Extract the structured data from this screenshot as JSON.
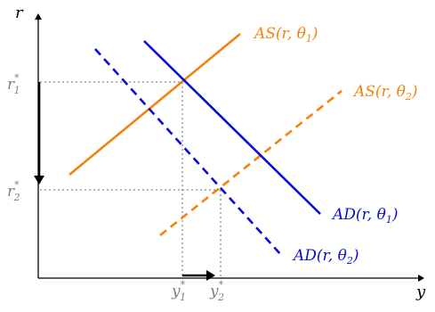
{
  "axes": {
    "y_label": "r",
    "x_label": "y"
  },
  "curves": {
    "as1": {
      "label": "AS(r, θ",
      "sub": "1",
      "close": ")"
    },
    "as2": {
      "label": "AS(r, θ",
      "sub": "2",
      "close": ")"
    },
    "ad1": {
      "label": "AD(r, θ",
      "sub": "1",
      "close": ")"
    },
    "ad2": {
      "label": "AD(r, θ",
      "sub": "2",
      "close": ")"
    }
  },
  "ticks": {
    "r1": {
      "base": "r",
      "sup": "*",
      "sub": "1"
    },
    "r2": {
      "base": "r",
      "sup": "*",
      "sub": "2"
    },
    "y1": {
      "base": "y",
      "sup": "*",
      "sub": "1"
    },
    "y2": {
      "base": "y",
      "sup": "*",
      "sub": "2"
    }
  },
  "colors": {
    "axis": "#000000",
    "as": "#f5820f",
    "ad": "#0a0adc",
    "guide": "#888888",
    "tick_label": "#808080"
  }
}
